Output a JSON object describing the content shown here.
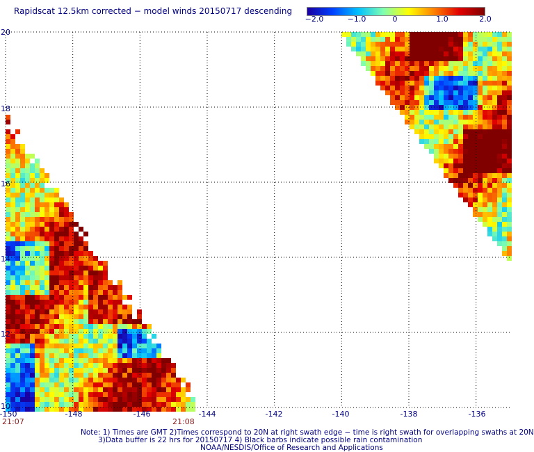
{
  "title": "Rapidscat 12.5km corrected − model winds 20150717 descending",
  "colorbar": {
    "ticks": [
      {
        "label": "−2.0",
        "value": -2.0
      },
      {
        "label": "−1.0",
        "value": -1.0
      },
      {
        "label": "0",
        "value": 0
      },
      {
        "label": "1.0",
        "value": 1.0
      },
      {
        "label": "2.0",
        "value": 2.0
      }
    ],
    "range": [
      -2.0,
      2.0
    ],
    "colors": [
      "#1a00a0",
      "#0040ff",
      "#00c0ff",
      "#80ffb0",
      "#ffff00",
      "#ff8000",
      "#e00000",
      "#800000"
    ]
  },
  "axes": {
    "x_ticks": [
      {
        "label": "-150",
        "value": -150
      },
      {
        "label": "-148",
        "value": -148
      },
      {
        "label": "-146",
        "value": -146
      },
      {
        "label": "-144",
        "value": -144
      },
      {
        "label": "-142",
        "value": -142
      },
      {
        "label": "-140",
        "value": -140
      },
      {
        "label": "-138",
        "value": -138
      },
      {
        "label": "-136",
        "value": -136
      }
    ],
    "y_ticks": [
      {
        "label": "10",
        "value": 10
      },
      {
        "label": "12",
        "value": 12
      },
      {
        "label": "14",
        "value": 14
      },
      {
        "label": "16",
        "value": 16
      },
      {
        "label": "18",
        "value": 18
      },
      {
        "label": "20",
        "value": 20
      }
    ],
    "lon_range": [
      -150,
      -135
    ],
    "lat_range": [
      10,
      20
    ]
  },
  "time_labels": [
    {
      "label": "21:07",
      "lon": -150
    },
    {
      "label": "21:08",
      "lon": -145
    }
  ],
  "notes": [
    "Note: 1) Times are GMT 2)Times correspond to 20N at right swath edge − time is right swath for overlapping swaths at 20N",
    "3)Data buffer is 22 hrs for 20150717 4) Black barbs indicate possible rain contamination",
    "NOAA/NESDIS/Office of Research and Applications"
  ]
}
